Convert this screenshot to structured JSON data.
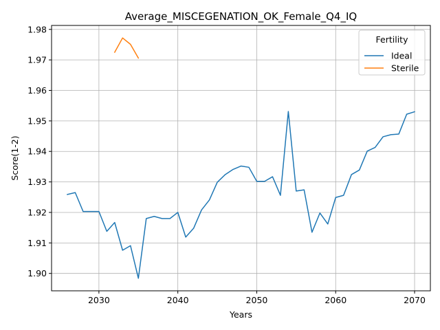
{
  "chart_data": {
    "type": "line",
    "title": "Average_MISCEGENATION_OK_Female_Q4_IQ",
    "xlabel": "Years",
    "ylabel": "Score(1-2)",
    "xlim": [
      2024,
      2072
    ],
    "ylim": [
      1.8943,
      1.9813
    ],
    "xticks": [
      2030,
      2040,
      2050,
      2060,
      2070
    ],
    "yticks": [
      1.9,
      1.91,
      1.92,
      1.93,
      1.94,
      1.95,
      1.96,
      1.97,
      1.98
    ],
    "xtick_labels": [
      "2030",
      "2040",
      "2050",
      "2060",
      "2070"
    ],
    "ytick_labels": [
      "1.90",
      "1.91",
      "1.92",
      "1.93",
      "1.94",
      "1.95",
      "1.96",
      "1.97",
      "1.98"
    ],
    "grid": true,
    "legend": {
      "title": "Fertility",
      "placement": "top-right"
    },
    "series": [
      {
        "name": "Ideal",
        "color": "#1f77b4",
        "x": [
          2026,
          2027,
          2028,
          2029,
          2030,
          2031,
          2032,
          2033,
          2034,
          2035,
          2036,
          2037,
          2038,
          2039,
          2040,
          2041,
          2042,
          2043,
          2044,
          2045,
          2046,
          2047,
          2048,
          2049,
          2050,
          2051,
          2052,
          2053,
          2054,
          2055,
          2056,
          2057,
          2058,
          2059,
          2060,
          2061,
          2062,
          2063,
          2064,
          2065,
          2066,
          2067,
          2068,
          2069,
          2070
        ],
        "y": [
          1.9259,
          1.9265,
          1.9203,
          1.9203,
          1.9203,
          1.9138,
          1.9167,
          1.9076,
          1.9091,
          1.8984,
          1.918,
          1.9187,
          1.918,
          1.918,
          1.92,
          1.9119,
          1.9148,
          1.9208,
          1.9241,
          1.9299,
          1.9324,
          1.9341,
          1.9352,
          1.9348,
          1.9302,
          1.9302,
          1.9317,
          1.9256,
          1.9531,
          1.927,
          1.9274,
          1.9135,
          1.9198,
          1.9162,
          1.9249,
          1.9256,
          1.9324,
          1.9339,
          1.9401,
          1.9413,
          1.9448,
          1.9455,
          1.9457,
          1.9522,
          1.953
        ]
      },
      {
        "name": "Sterile",
        "color": "#ff7f0e",
        "x": [
          2032,
          2033,
          2034,
          2035
        ],
        "y": [
          1.9725,
          1.9772,
          1.9751,
          1.9706
        ]
      }
    ]
  }
}
